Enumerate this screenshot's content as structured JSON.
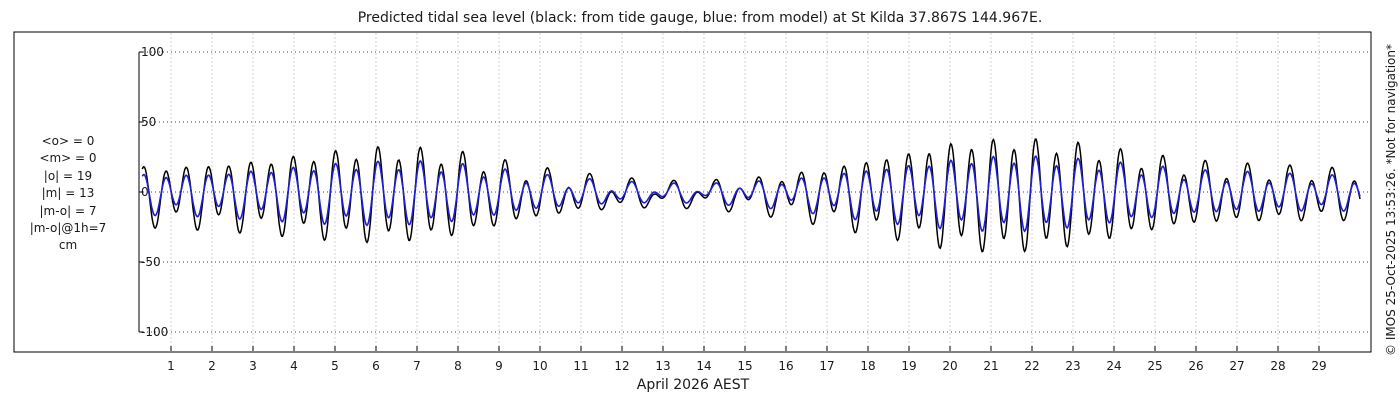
{
  "chart_data": {
    "type": "line",
    "title": "Predicted tidal sea level (black: from tide gauge, blue: from model) at St Kilda 37.867S 144.967E.",
    "xlabel": "April 2026 AEST",
    "ylabel": "cm",
    "x_tick_labels": [
      "1",
      "2",
      "3",
      "4",
      "5",
      "6",
      "7",
      "8",
      "9",
      "10",
      "11",
      "12",
      "13",
      "14",
      "15",
      "16",
      "17",
      "18",
      "19",
      "20",
      "21",
      "22",
      "23",
      "24",
      "25",
      "26",
      "27",
      "28",
      "29"
    ],
    "x_range_days": [
      0.3,
      30.0
    ],
    "y_ticks": [
      100,
      50,
      0,
      -50,
      -100
    ],
    "y_tick_labels": [
      "100",
      "50",
      "0",
      "-50",
      "-100"
    ],
    "ylim": [
      -115,
      115
    ],
    "grid": true,
    "series": [
      {
        "name": "from tide gauge",
        "color": "#000000",
        "semidiurnal_amplitude": [
          18,
          20,
          22,
          25,
          28,
          30,
          29,
          26,
          20,
          14,
          10,
          7,
          5,
          6,
          8,
          12,
          17,
          23,
          28,
          34,
          36,
          36,
          33,
          28,
          23,
          19,
          17,
          16,
          15,
          14
        ],
        "diurnal_amplitude": 6,
        "mean_level": -2
      },
      {
        "name": "from model",
        "color": "#1f1fd6",
        "semidiurnal_amplitude": [
          12,
          13,
          15,
          17,
          19,
          20,
          20,
          18,
          14,
          10,
          7,
          5,
          4,
          4,
          6,
          8,
          12,
          16,
          19,
          22,
          24,
          24,
          22,
          19,
          16,
          13,
          12,
          11,
          10,
          10
        ],
        "diurnal_amplitude": 4,
        "mean_level": -1
      }
    ],
    "stats": [
      "<o> = 0",
      "<m> = 0",
      "|o| = 19",
      "|m| = 13",
      "|m-o| = 7",
      "|m-o|@1h=7",
      "cm"
    ],
    "credit": "© IMOS 25-Oct-2025 13:53:26. *Not for navigation*"
  }
}
